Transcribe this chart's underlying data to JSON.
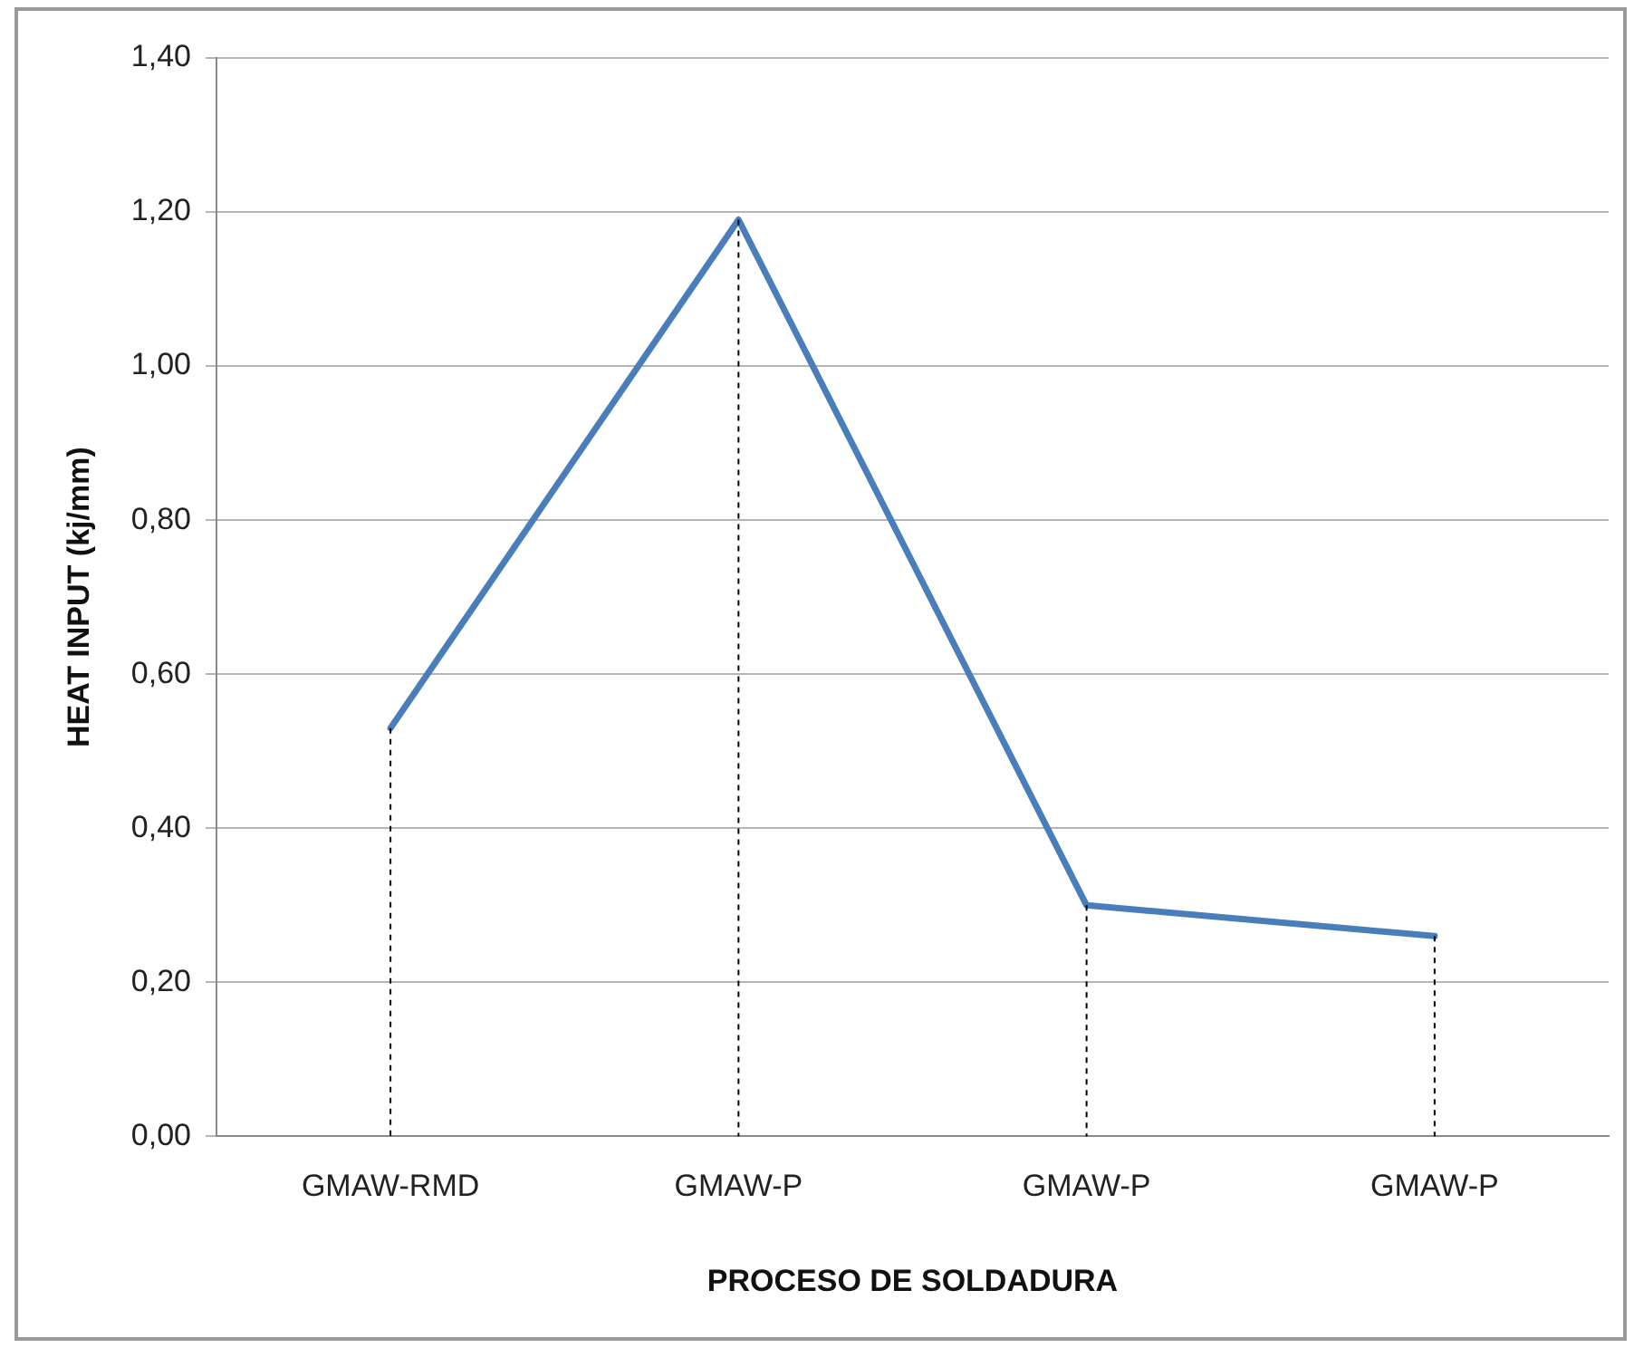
{
  "chart_data": {
    "type": "line",
    "xlabel": "PROCESO DE SOLDADURA",
    "ylabel": "HEAT INPUT (kj/mm)",
    "categories": [
      "GMAW-RMD",
      "GMAW-P",
      "GMAW-P",
      "GMAW-P"
    ],
    "series": [
      {
        "color": "#4a7ebb",
        "values": [
          0.53,
          1.19,
          0.3,
          0.26
        ],
        "errors": [
          [
            0,
            0.53
          ],
          [
            0,
            1.19
          ],
          [
            0,
            0.3
          ],
          [
            0,
            0.26
          ]
        ]
      }
    ],
    "ylim": [
      0,
      1.4
    ],
    "yticks": [
      {
        "value": 0,
        "label": "0,00"
      },
      {
        "value": 0.2,
        "label": "0,20"
      },
      {
        "value": 0.4,
        "label": "0,40"
      },
      {
        "value": 0.6,
        "label": "0,60"
      },
      {
        "value": 0.8,
        "label": "0,80"
      },
      {
        "value": 1.0,
        "label": "1,00"
      },
      {
        "value": 1.2,
        "label": "1,20"
      },
      {
        "value": 1.4,
        "label": "1,40"
      }
    ],
    "grid": "y",
    "legend": false,
    "marker": "none",
    "line_style": "solid"
  }
}
